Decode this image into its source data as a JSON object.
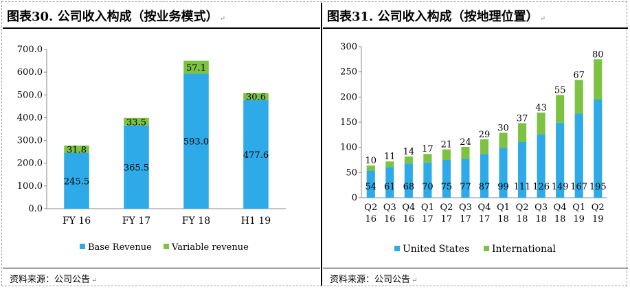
{
  "left": {
    "title": "图表30. 公司收入构成（按业务模式）",
    "source": "资料来源：公司公告",
    "chart_data": {
      "type": "bar",
      "stacked": true,
      "categories": [
        "FY 16",
        "FY 17",
        "FY 18",
        "H1 19"
      ],
      "series": [
        {
          "name": "Base Revenue",
          "values": [
            245.5,
            365.5,
            593.0,
            477.6
          ],
          "color": "#2EAAE8"
        },
        {
          "name": "Variable revenue",
          "values": [
            31.8,
            33.5,
            57.1,
            30.6
          ],
          "color": "#7DC242"
        }
      ],
      "ylim": [
        0,
        700
      ],
      "yticks": [
        0,
        100,
        200,
        300,
        400,
        500,
        600,
        700
      ],
      "ytick_labels": [
        "0.0",
        "100.0",
        "200.0",
        "300.0",
        "400.0",
        "500.0",
        "600.0",
        "700.0"
      ],
      "value_labels": [
        [
          "245.5",
          "365.5",
          "593.0",
          "477.6"
        ],
        [
          "31.8",
          "33.5",
          "57.1",
          "30.6"
        ]
      ],
      "legend_position": "bottom",
      "grid": false
    }
  },
  "right": {
    "title": "图表31. 公司收入构成（按地理位置）",
    "source": "资料来源：公司公告",
    "chart_data": {
      "type": "bar",
      "stacked": true,
      "categories": [
        "Q2 16",
        "Q3 16",
        "Q4 16",
        "Q1 17",
        "Q2 17",
        "Q3 17",
        "Q4 17",
        "Q1 18",
        "Q2 18",
        "Q3 18",
        "Q4 18",
        "Q1 19",
        "Q2 19"
      ],
      "category_lines": [
        [
          "Q2",
          "16"
        ],
        [
          "Q3",
          "16"
        ],
        [
          "Q4",
          "16"
        ],
        [
          "Q1",
          "17"
        ],
        [
          "Q2",
          "17"
        ],
        [
          "Q3",
          "17"
        ],
        [
          "Q4",
          "17"
        ],
        [
          "Q1",
          "18"
        ],
        [
          "Q2",
          "18"
        ],
        [
          "Q3",
          "18"
        ],
        [
          "Q4",
          "18"
        ],
        [
          "Q1",
          "19"
        ],
        [
          "Q2",
          "19"
        ]
      ],
      "series": [
        {
          "name": "United States",
          "values": [
            54,
            61,
            68,
            70,
            75,
            77,
            87,
            99,
            111,
            126,
            149,
            167,
            195
          ],
          "color": "#2EAAE8"
        },
        {
          "name": "International",
          "values": [
            10,
            11,
            14,
            17,
            21,
            24,
            29,
            30,
            37,
            43,
            55,
            67,
            80
          ],
          "color": "#7DC242"
        }
      ],
      "ylim": [
        0,
        300
      ],
      "yticks": [
        0,
        50,
        100,
        150,
        200,
        250,
        300
      ],
      "ytick_labels": [
        "0",
        "50",
        "100",
        "150",
        "200",
        "250",
        "300"
      ],
      "legend_position": "bottom",
      "grid": false
    }
  }
}
